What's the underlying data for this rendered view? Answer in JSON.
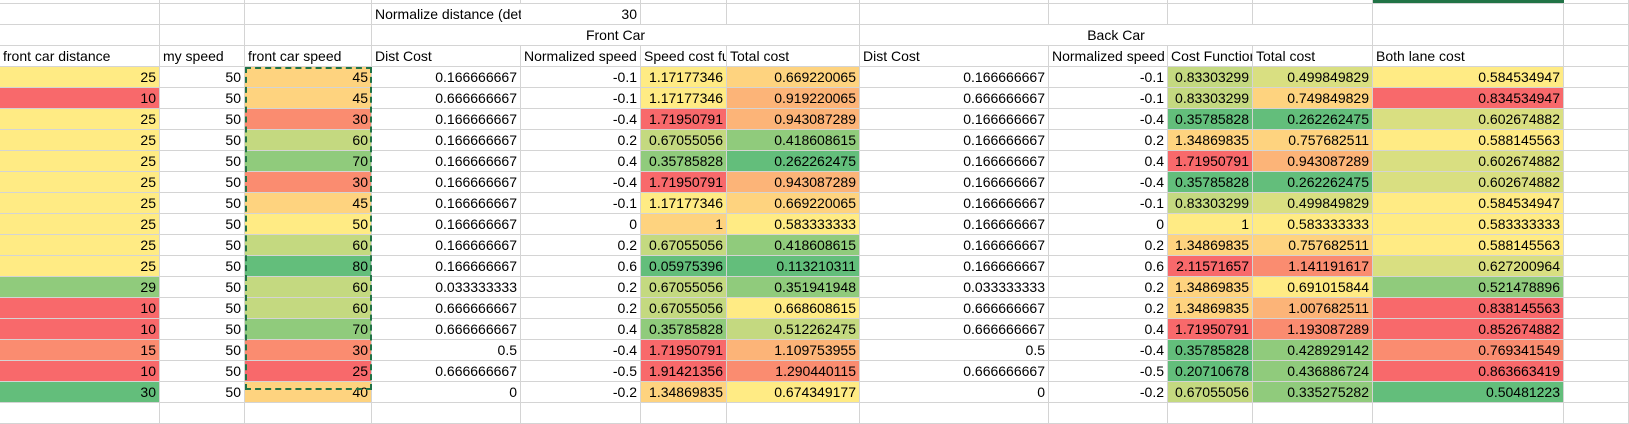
{
  "colors": {
    "red": "#f8696b",
    "orange_red": "#fa8c70",
    "orange": "#fcb478",
    "light_orange": "#fed37f",
    "yellow": "#ffeb84",
    "yellow_green": "#d9df81",
    "light_green": "#c4d980",
    "green": "#90cb7c",
    "dark_green": "#63be7b"
  },
  "sheet": {
    "param_label": "Normalize distance (det",
    "param_value": "30",
    "group_front": "Front Car",
    "group_back": "Back Car",
    "headers": [
      "front car distance",
      "my speed",
      "front car speed",
      "Dist Cost",
      "Normalized speed",
      "Speed cost fu",
      "Total cost",
      "Dist Cost",
      "Normalized speed",
      "Cost Function",
      "Total cost",
      "Both lane cost"
    ],
    "rows": [
      [
        "25",
        "50",
        "45",
        "0.166666667",
        "-0.1",
        "1.17177346",
        "0.669220065",
        "0.166666667",
        "-0.1",
        "0.83303299",
        "0.499849829",
        "0.584534947"
      ],
      [
        "10",
        "50",
        "45",
        "0.666666667",
        "-0.1",
        "1.17177346",
        "0.919220065",
        "0.666666667",
        "-0.1",
        "0.83303299",
        "0.749849829",
        "0.834534947"
      ],
      [
        "25",
        "50",
        "30",
        "0.166666667",
        "-0.4",
        "1.71950791",
        "0.943087289",
        "0.166666667",
        "-0.4",
        "0.35785828",
        "0.262262475",
        "0.602674882"
      ],
      [
        "25",
        "50",
        "60",
        "0.166666667",
        "0.2",
        "0.67055056",
        "0.418608615",
        "0.166666667",
        "0.2",
        "1.34869835",
        "0.757682511",
        "0.588145563"
      ],
      [
        "25",
        "50",
        "70",
        "0.166666667",
        "0.4",
        "0.35785828",
        "0.262262475",
        "0.166666667",
        "0.4",
        "1.71950791",
        "0.943087289",
        "0.602674882"
      ],
      [
        "25",
        "50",
        "30",
        "0.166666667",
        "-0.4",
        "1.71950791",
        "0.943087289",
        "0.166666667",
        "-0.4",
        "0.35785828",
        "0.262262475",
        "0.602674882"
      ],
      [
        "25",
        "50",
        "45",
        "0.166666667",
        "-0.1",
        "1.17177346",
        "0.669220065",
        "0.166666667",
        "-0.1",
        "0.83303299",
        "0.499849829",
        "0.584534947"
      ],
      [
        "25",
        "50",
        "50",
        "0.166666667",
        "0",
        "1",
        "0.583333333",
        "0.166666667",
        "0",
        "1",
        "0.583333333",
        "0.583333333"
      ],
      [
        "25",
        "50",
        "60",
        "0.166666667",
        "0.2",
        "0.67055056",
        "0.418608615",
        "0.166666667",
        "0.2",
        "1.34869835",
        "0.757682511",
        "0.588145563"
      ],
      [
        "25",
        "50",
        "80",
        "0.166666667",
        "0.6",
        "0.05975396",
        "0.113210311",
        "0.166666667",
        "0.6",
        "2.11571657",
        "1.141191617",
        "0.627200964"
      ],
      [
        "29",
        "50",
        "60",
        "0.033333333",
        "0.2",
        "0.67055056",
        "0.351941948",
        "0.033333333",
        "0.2",
        "1.34869835",
        "0.691015844",
        "0.521478896"
      ],
      [
        "10",
        "50",
        "60",
        "0.666666667",
        "0.2",
        "0.67055056",
        "0.668608615",
        "0.666666667",
        "0.2",
        "1.34869835",
        "1.007682511",
        "0.838145563"
      ],
      [
        "10",
        "50",
        "70",
        "0.666666667",
        "0.4",
        "0.35785828",
        "0.512262475",
        "0.666666667",
        "0.4",
        "1.71950791",
        "1.193087289",
        "0.852674882"
      ],
      [
        "15",
        "50",
        "30",
        "0.5",
        "-0.4",
        "1.71950791",
        "1.109753955",
        "0.5",
        "-0.4",
        "0.35785828",
        "0.428929142",
        "0.769341549"
      ],
      [
        "10",
        "50",
        "25",
        "0.666666667",
        "-0.5",
        "1.91421356",
        "1.290440115",
        "0.666666667",
        "-0.5",
        "0.20710678",
        "0.436886724",
        "0.863663419"
      ],
      [
        "30",
        "50",
        "40",
        "0",
        "-0.2",
        "1.34869835",
        "0.674349177",
        "0",
        "-0.2",
        "0.67055056",
        "0.335275282",
        "0.50481223"
      ]
    ],
    "fills": [
      [
        "yellow",
        "",
        "light_orange",
        "",
        "",
        "yellow",
        "light_orange",
        "",
        "",
        "light_green",
        "yellow_green",
        "yellow"
      ],
      [
        "red",
        "",
        "light_orange",
        "",
        "",
        "yellow",
        "orange",
        "",
        "",
        "light_green",
        "light_orange",
        "red"
      ],
      [
        "yellow",
        "",
        "orange_red",
        "",
        "",
        "red",
        "orange",
        "",
        "",
        "dark_green",
        "dark_green",
        "yellow_green"
      ],
      [
        "yellow",
        "",
        "light_green",
        "",
        "",
        "light_green",
        "green",
        "",
        "",
        "light_orange",
        "light_orange",
        "yellow"
      ],
      [
        "yellow",
        "",
        "green",
        "",
        "",
        "green",
        "dark_green",
        "",
        "",
        "red",
        "orange",
        "yellow_green"
      ],
      [
        "yellow",
        "",
        "orange_red",
        "",
        "",
        "red",
        "orange",
        "",
        "",
        "dark_green",
        "dark_green",
        "yellow_green"
      ],
      [
        "yellow",
        "",
        "light_orange",
        "",
        "",
        "yellow",
        "light_orange",
        "",
        "",
        "light_green",
        "yellow_green",
        "yellow"
      ],
      [
        "yellow",
        "",
        "yellow",
        "",
        "",
        "light_orange",
        "yellow",
        "",
        "",
        "yellow",
        "yellow",
        "yellow"
      ],
      [
        "yellow",
        "",
        "light_green",
        "",
        "",
        "light_green",
        "green",
        "",
        "",
        "light_orange",
        "light_orange",
        "yellow"
      ],
      [
        "yellow",
        "",
        "dark_green",
        "",
        "",
        "dark_green",
        "dark_green",
        "",
        "",
        "red",
        "orange_red",
        "yellow_green"
      ],
      [
        "green",
        "",
        "light_green",
        "",
        "",
        "light_green",
        "green",
        "",
        "",
        "light_orange",
        "yellow",
        "green"
      ],
      [
        "red",
        "",
        "light_green",
        "",
        "",
        "light_green",
        "yellow",
        "",
        "",
        "light_orange",
        "orange",
        "red"
      ],
      [
        "red",
        "",
        "green",
        "",
        "",
        "green",
        "light_green",
        "",
        "",
        "red",
        "orange_red",
        "red"
      ],
      [
        "orange_red",
        "",
        "orange_red",
        "",
        "",
        "red",
        "orange",
        "",
        "",
        "dark_green",
        "green",
        "orange_red"
      ],
      [
        "red",
        "",
        "red",
        "",
        "",
        "red",
        "orange_red",
        "",
        "",
        "dark_green",
        "green",
        "red"
      ],
      [
        "dark_green",
        "",
        "light_orange",
        "",
        "",
        "light_orange",
        "yellow",
        "",
        "",
        "light_green",
        "green",
        "dark_green"
      ]
    ]
  }
}
